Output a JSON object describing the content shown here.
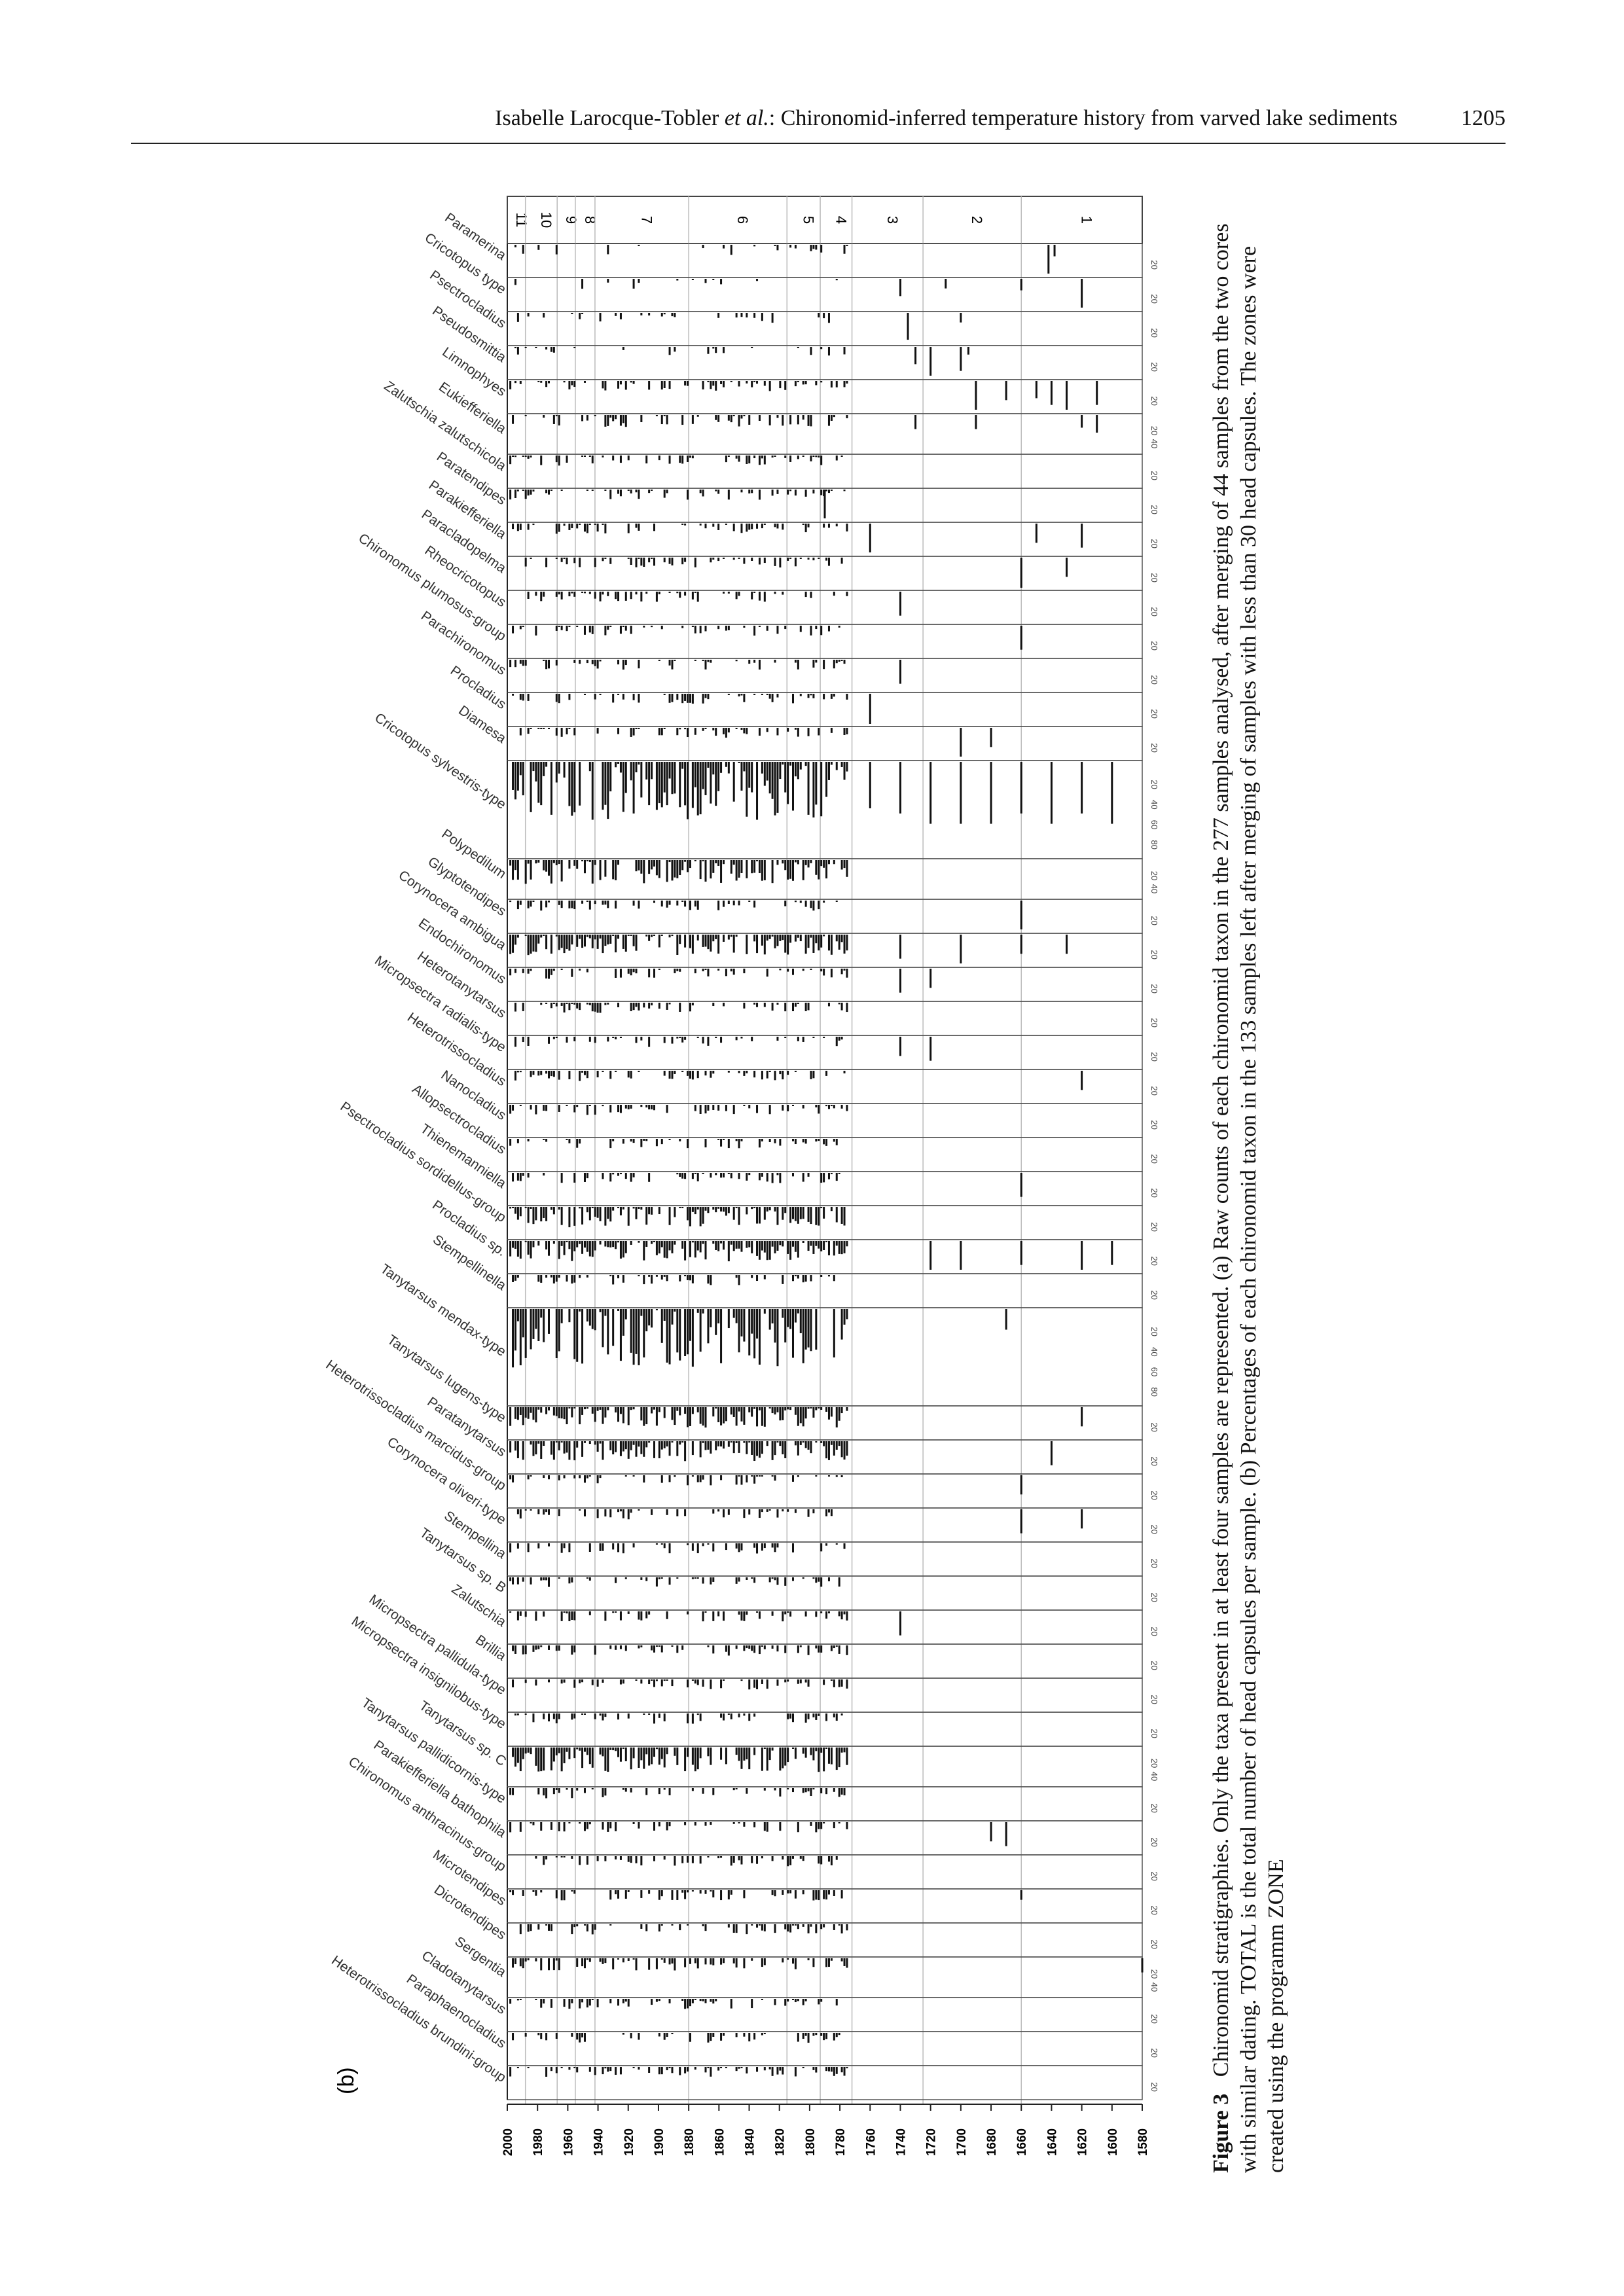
{
  "header": {
    "author": "Isabelle Larocque-Tobler",
    "etal": "et al.",
    "title_suffix": ": Chironomid-inferred temperature history from varved lake sediments",
    "page": "1205"
  },
  "panel_label": "(b)",
  "figure": {
    "zones": [
      "11",
      "10",
      "9",
      "8",
      "7",
      "6",
      "5",
      "4",
      "3",
      "2",
      "1"
    ],
    "zone_boundaries_years": [
      1988,
      1967,
      1955,
      1942,
      1880,
      1815,
      1793,
      1772,
      1725,
      1660,
      1580
    ],
    "year_ticks": [
      "2000",
      "1980",
      "1960",
      "1940",
      "1920",
      "1900",
      "1880",
      "1860",
      "1840",
      "1820",
      "1800",
      "1780",
      "1760",
      "1740",
      "1720",
      "1700",
      "1680",
      "1660",
      "1640",
      "1620",
      "1600",
      "1580"
    ],
    "year_range": [
      1580,
      2000
    ],
    "scale_labels": {
      "s20": [
        "20"
      ],
      "s40": [
        "20",
        "40"
      ],
      "s80": [
        "20",
        "40",
        "60",
        "80"
      ]
    },
    "taxa": [
      {
        "name": "Paramerina",
        "scale": "s20",
        "bars": [
          [
            1642,
            30
          ],
          [
            1638,
            12
          ]
        ],
        "variant": "t"
      },
      {
        "name": "Cricotopus type",
        "scale": "s20",
        "bars": [
          [
            1740,
            18
          ],
          [
            1710,
            10
          ],
          [
            1660,
            12
          ],
          [
            1620,
            30
          ]
        ],
        "variant": "t"
      },
      {
        "name": "Psectrocladius",
        "scale": "s20",
        "bars": [
          [
            1735,
            28
          ],
          [
            1700,
            10
          ]
        ],
        "variant": "t"
      },
      {
        "name": "Pseudosmittia",
        "scale": "s20",
        "bars": [
          [
            1700,
            25
          ],
          [
            1695,
            8
          ],
          [
            1720,
            30
          ],
          [
            1730,
            18
          ]
        ],
        "variant": "t"
      },
      {
        "name": "Limnophyes",
        "scale": "s20",
        "bars": [
          [
            1690,
            30
          ],
          [
            1670,
            20
          ],
          [
            1650,
            18
          ],
          [
            1640,
            25
          ],
          [
            1630,
            30
          ],
          [
            1610,
            25
          ]
        ],
        "variant": "s"
      },
      {
        "name": "Eukiefferiella",
        "scale": "s40",
        "bars": [
          [
            1730,
            20
          ],
          [
            1690,
            20
          ],
          [
            1620,
            18
          ],
          [
            1610,
            25
          ]
        ],
        "variant": "s"
      },
      {
        "name": "Zalutschia zalutschicola",
        "scale": "s20",
        "bars": [],
        "variant": "s"
      },
      {
        "name": "Paratendipes",
        "scale": "s20",
        "bars": [
          [
            1790,
            30
          ]
        ],
        "variant": "s"
      },
      {
        "name": "Parakiefferiella",
        "scale": "s20",
        "bars": [
          [
            1760,
            30
          ],
          [
            1650,
            20
          ],
          [
            1620,
            25
          ]
        ],
        "variant": "s"
      },
      {
        "name": "Paracladopelma",
        "scale": "s20",
        "bars": [
          [
            1660,
            40
          ],
          [
            1630,
            20
          ]
        ],
        "variant": "s"
      },
      {
        "name": "Rheocricotopus",
        "scale": "s20",
        "bars": [
          [
            1740,
            25
          ]
        ],
        "variant": "s"
      },
      {
        "name": "Chironomus plumosus-group",
        "scale": "s20",
        "bars": [
          [
            1660,
            25
          ]
        ],
        "variant": "s"
      },
      {
        "name": "Parachironomus",
        "scale": "s20",
        "bars": [
          [
            1740,
            25
          ]
        ],
        "variant": "s"
      },
      {
        "name": "Procladius",
        "scale": "s20",
        "bars": [
          [
            1760,
            40
          ]
        ],
        "variant": "s"
      },
      {
        "name": "Diamesa",
        "scale": "s20",
        "bars": [
          [
            1700,
            30
          ],
          [
            1680,
            20
          ]
        ],
        "variant": "s"
      },
      {
        "name": "Cricotopus sylvestris-type",
        "scale": "s80",
        "bars": [
          [
            1760,
            45
          ],
          [
            1740,
            50
          ],
          [
            1720,
            60
          ],
          [
            1700,
            60
          ],
          [
            1680,
            60
          ],
          [
            1660,
            50
          ],
          [
            1640,
            60
          ],
          [
            1620,
            50
          ],
          [
            1600,
            60
          ]
        ],
        "variant": "d"
      },
      {
        "name": "Polypedilum",
        "scale": "s40",
        "bars": [],
        "variant": "d"
      },
      {
        "name": "Glyptotendipes",
        "scale": "s20",
        "bars": [
          [
            1660,
            30
          ]
        ],
        "variant": "s"
      },
      {
        "name": "Corynocera ambigua",
        "scale": "s20",
        "bars": [
          [
            1740,
            25
          ],
          [
            1700,
            30
          ],
          [
            1660,
            20
          ],
          [
            1630,
            20
          ]
        ],
        "variant": "d"
      },
      {
        "name": "Endochironomus",
        "scale": "s20",
        "bars": [
          [
            1740,
            25
          ],
          [
            1720,
            20
          ]
        ],
        "variant": "s"
      },
      {
        "name": "Heterotanytarsus",
        "scale": "s20",
        "bars": [],
        "variant": "s"
      },
      {
        "name": "Micropsectra radialis-type",
        "scale": "s20",
        "bars": [
          [
            1740,
            20
          ],
          [
            1720,
            25
          ]
        ],
        "variant": "s"
      },
      {
        "name": "Heterotrissocladius",
        "scale": "s20",
        "bars": [
          [
            1620,
            20
          ]
        ],
        "variant": "s"
      },
      {
        "name": "Nanocladius",
        "scale": "s20",
        "bars": [],
        "variant": "s"
      },
      {
        "name": "Allopsectrocladius",
        "scale": "s20",
        "bars": [],
        "variant": "s"
      },
      {
        "name": "Thienemanniella",
        "scale": "s20",
        "bars": [
          [
            1660,
            25
          ]
        ],
        "variant": "s"
      },
      {
        "name": "Psectrocladius sordidellus-group",
        "scale": "s20",
        "bars": [],
        "variant": "d"
      },
      {
        "name": "Procladius sp.",
        "scale": "s20",
        "bars": [
          [
            1720,
            30
          ],
          [
            1700,
            30
          ],
          [
            1660,
            25
          ],
          [
            1620,
            30
          ],
          [
            1600,
            25
          ]
        ],
        "variant": "d"
      },
      {
        "name": "Stempellinella",
        "scale": "s20",
        "bars": [],
        "variant": "s"
      },
      {
        "name": "Tanytarsus mendax-type",
        "scale": "s80",
        "bars": [
          [
            1670,
            20
          ]
        ],
        "variant": "d"
      },
      {
        "name": "Tanytarsus lugens-type",
        "scale": "s20",
        "bars": [
          [
            1620,
            20
          ]
        ],
        "variant": "d"
      },
      {
        "name": "Paratanytarsus",
        "scale": "s20",
        "bars": [
          [
            1640,
            25
          ]
        ],
        "variant": "d"
      },
      {
        "name": "Heterotrissocladius marcidus-group",
        "scale": "s20",
        "bars": [
          [
            1660,
            20
          ]
        ],
        "variant": "s"
      },
      {
        "name": "Corynocera oliveri-type",
        "scale": "s20",
        "bars": [
          [
            1660,
            25
          ],
          [
            1620,
            20
          ]
        ],
        "variant": "s"
      },
      {
        "name": "Stempellina",
        "scale": "s20",
        "bars": [],
        "variant": "s"
      },
      {
        "name": "Tanytarsus sp. B",
        "scale": "s20",
        "bars": [],
        "variant": "s"
      },
      {
        "name": "Zalutschia",
        "scale": "s20",
        "bars": [
          [
            1740,
            25
          ]
        ],
        "variant": "s"
      },
      {
        "name": "Brillia",
        "scale": "s20",
        "bars": [],
        "variant": "s"
      },
      {
        "name": "Micropsectra pallidula-type",
        "scale": "s20",
        "bars": [],
        "variant": "s"
      },
      {
        "name": "Micropsectra insignilobus-type",
        "scale": "s20",
        "bars": [],
        "variant": "s"
      },
      {
        "name": "Tanytarsus sp. C",
        "scale": "s40",
        "bars": [],
        "variant": "d"
      },
      {
        "name": "Tanytarsus pallidicornis-type",
        "scale": "s20",
        "bars": [],
        "variant": "s"
      },
      {
        "name": "Parakiefferiella bathophila",
        "scale": "s20",
        "bars": [
          [
            1680,
            20
          ],
          [
            1670,
            25
          ]
        ],
        "variant": "s"
      },
      {
        "name": "Chironomus anthracinus-group",
        "scale": "s20",
        "bars": [],
        "variant": "s"
      },
      {
        "name": "Microtendipes",
        "scale": "s20",
        "bars": [
          [
            1660,
            10
          ]
        ],
        "variant": "s"
      },
      {
        "name": "Dicrotendipes",
        "scale": "s20",
        "bars": [],
        "variant": "s"
      },
      {
        "name": "Sergentia",
        "scale": "s40",
        "bars": [
          [
            1580,
            20
          ]
        ],
        "variant": "s"
      },
      {
        "name": "Cladotanytarsus",
        "scale": "s20",
        "bars": [],
        "variant": "s"
      },
      {
        "name": "Paraphaenocladius",
        "scale": "s20",
        "bars": [],
        "variant": "s"
      },
      {
        "name": "Heterotrissocladius brundini-group",
        "scale": "s20",
        "bars": [],
        "variant": "s"
      }
    ]
  },
  "caption": {
    "label": "Figure 3",
    "text": "Chironomid stratigraphies. Only the taxa present in at least four samples are represented. (a) Raw counts of each chironomid taxon in the 277 samples analysed, after merging of 44 samples from the two cores with similar dating. TOTAL is the total number of head capsules per sample. (b) Percentages of each chironomid taxon in the 133 samples left after merging of samples with less than 30 head capsules. The zones were created using the programm ZONE"
  }
}
